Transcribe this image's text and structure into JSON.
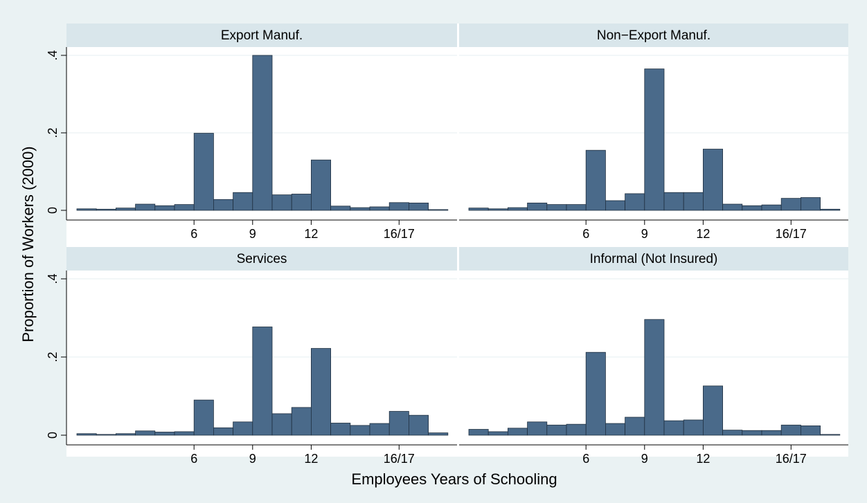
{
  "chart_data": {
    "type": "bar",
    "xlabel": "Employees Years of Schooling",
    "ylabel": "Proportion of Workers (2000)",
    "ylim": [
      0,
      0.42
    ],
    "y_ticks": [
      {
        "value": 0,
        "label": "0"
      },
      {
        "value": 0.2,
        "label": ".2"
      },
      {
        "value": 0.4,
        "label": ".4"
      }
    ],
    "x_ticks": [
      {
        "value": 6,
        "label": "6"
      },
      {
        "value": 9,
        "label": "9"
      },
      {
        "value": 12,
        "label": "12"
      },
      {
        "value": 16.5,
        "label": "16/17"
      }
    ],
    "categories": [
      0,
      1,
      2,
      3,
      4,
      5,
      6,
      7,
      8,
      9,
      10,
      11,
      12,
      13,
      14,
      15,
      16,
      17,
      18
    ],
    "grid": true,
    "bar_color": "#4a6a8a",
    "panels": [
      {
        "title": "Export Manuf.",
        "values": [
          0.004,
          0.003,
          0.006,
          0.016,
          0.012,
          0.015,
          0.199,
          0.028,
          0.046,
          0.4,
          0.04,
          0.042,
          0.13,
          0.011,
          0.007,
          0.009,
          0.02,
          0.019,
          0.002
        ]
      },
      {
        "title": "Non−Export Manuf.",
        "values": [
          0.006,
          0.004,
          0.007,
          0.019,
          0.015,
          0.015,
          0.155,
          0.025,
          0.043,
          0.365,
          0.046,
          0.046,
          0.158,
          0.016,
          0.012,
          0.014,
          0.031,
          0.033,
          0.003
        ]
      },
      {
        "title": "Services",
        "values": [
          0.004,
          0.002,
          0.004,
          0.011,
          0.008,
          0.009,
          0.09,
          0.019,
          0.034,
          0.277,
          0.055,
          0.071,
          0.222,
          0.031,
          0.025,
          0.03,
          0.061,
          0.051,
          0.006
        ]
      },
      {
        "title": "Informal (Not Insured)",
        "values": [
          0.015,
          0.009,
          0.018,
          0.034,
          0.026,
          0.028,
          0.212,
          0.03,
          0.046,
          0.296,
          0.037,
          0.039,
          0.126,
          0.013,
          0.012,
          0.012,
          0.026,
          0.024,
          0.002
        ]
      }
    ]
  }
}
